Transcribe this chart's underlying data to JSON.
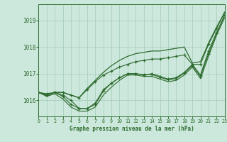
{
  "background_color": "#cce8dc",
  "grid_color": "#aacfbf",
  "line_color": "#2d6a2d",
  "title": "Graphe pression niveau de la mer (hPa)",
  "xlim": [
    0,
    23
  ],
  "ylim": [
    1015.4,
    1019.6
  ],
  "yticks": [
    1016,
    1017,
    1018,
    1019
  ],
  "xticks": [
    0,
    1,
    2,
    3,
    4,
    5,
    6,
    7,
    8,
    9,
    10,
    11,
    12,
    13,
    14,
    15,
    16,
    17,
    18,
    19,
    20,
    21,
    22,
    23
  ],
  "hours": [
    0,
    1,
    2,
    3,
    4,
    5,
    6,
    7,
    8,
    9,
    10,
    11,
    12,
    13,
    14,
    15,
    16,
    17,
    18,
    19,
    20,
    21,
    22,
    23
  ],
  "line_upper": [
    1016.3,
    1016.25,
    1016.3,
    1016.3,
    1016.2,
    1016.1,
    1016.4,
    1016.7,
    1016.95,
    1017.1,
    1017.25,
    1017.35,
    1017.45,
    1017.5,
    1017.55,
    1017.55,
    1017.6,
    1017.65,
    1017.7,
    1017.35,
    1017.35,
    1018.1,
    1018.7,
    1019.3
  ],
  "line_mid1": [
    1016.3,
    1016.2,
    1016.3,
    1016.15,
    1015.85,
    1015.7,
    1015.7,
    1015.85,
    1016.35,
    1016.65,
    1016.85,
    1017.0,
    1017.0,
    1016.95,
    1017.0,
    1016.9,
    1016.8,
    1016.85,
    1017.05,
    1017.35,
    1016.95,
    1017.85,
    1018.55,
    1019.2
  ],
  "line_mid2": [
    1016.3,
    1016.2,
    1016.3,
    1016.2,
    1016.0,
    1015.7,
    1015.7,
    1015.9,
    1016.4,
    1016.65,
    1016.85,
    1017.0,
    1017.0,
    1016.97,
    1016.97,
    1016.87,
    1016.77,
    1016.82,
    1017.02,
    1017.3,
    1016.9,
    1017.75,
    1018.5,
    1019.2
  ],
  "line_low": [
    1016.3,
    1016.15,
    1016.25,
    1016.05,
    1015.75,
    1015.6,
    1015.6,
    1015.75,
    1016.2,
    1016.5,
    1016.75,
    1016.95,
    1016.95,
    1016.9,
    1016.9,
    1016.8,
    1016.7,
    1016.75,
    1016.95,
    1017.25,
    1016.82,
    1017.65,
    1018.45,
    1019.1
  ],
  "line_envelope": [
    1016.3,
    1016.2,
    1016.3,
    1016.3,
    1016.2,
    1016.1,
    1016.45,
    1016.75,
    1017.05,
    1017.3,
    1017.5,
    1017.65,
    1017.75,
    1017.8,
    1017.85,
    1017.85,
    1017.9,
    1017.95,
    1018.0,
    1017.4,
    1017.45,
    1018.15,
    1018.75,
    1019.3
  ]
}
